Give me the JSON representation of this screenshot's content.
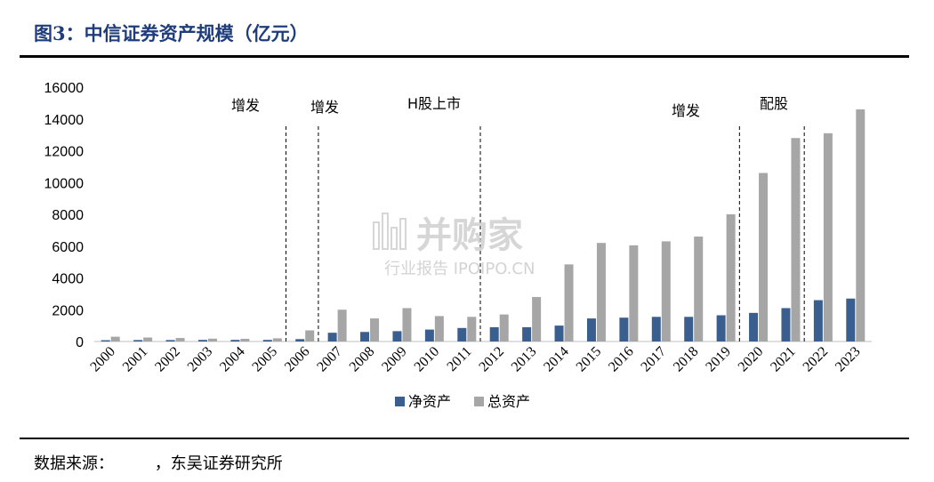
{
  "header": {
    "title": "图3：中信证券资产规模（亿元）"
  },
  "footer": {
    "source": "数据来源：        ，东吴证券研究所"
  },
  "watermark": {
    "name": "并购家",
    "sub": "行业报告 IPOIPO.CN"
  },
  "colors": {
    "net_assets": "#3a5f8f",
    "total_assets": "#a6a6a6",
    "title": "#1f3d7a"
  },
  "chart_data": {
    "type": "bar",
    "categories": [
      "2000",
      "2001",
      "2002",
      "2003",
      "2004",
      "2005",
      "2006",
      "2007",
      "2008",
      "2009",
      "2010",
      "2011",
      "2012",
      "2013",
      "2014",
      "2015",
      "2016",
      "2017",
      "2018",
      "2019",
      "2020",
      "2021",
      "2022",
      "2023"
    ],
    "series": [
      {
        "name": "净资产",
        "values": [
          80,
          90,
          90,
          100,
          100,
          100,
          150,
          550,
          600,
          650,
          750,
          850,
          900,
          900,
          1000,
          1450,
          1500,
          1550,
          1550,
          1650,
          1800,
          2100,
          2600,
          2700
        ]
      },
      {
        "name": "总资产",
        "values": [
          300,
          250,
          220,
          180,
          170,
          200,
          700,
          2000,
          1450,
          2100,
          1600,
          1550,
          1700,
          2800,
          4850,
          6200,
          6050,
          6300,
          6600,
          8000,
          10600,
          12800,
          13100,
          14600
        ]
      }
    ],
    "ylim": [
      0,
      16000
    ],
    "yticks": [
      0,
      2000,
      4000,
      6000,
      8000,
      10000,
      12000,
      14000,
      16000
    ],
    "xlabel": "",
    "ylabel": "",
    "legend_position": "bottom",
    "grid": false,
    "annotations": [
      {
        "text": "增发",
        "line_after": "2005"
      },
      {
        "text": "增发",
        "line_after": "2006"
      },
      {
        "text": "H股上市",
        "line_after": "2011"
      },
      {
        "text": "增发",
        "line_after": ""
      },
      {
        "text": "配股",
        "line_after": "2019"
      },
      {
        "text": "",
        "line_after": "2021"
      }
    ]
  }
}
